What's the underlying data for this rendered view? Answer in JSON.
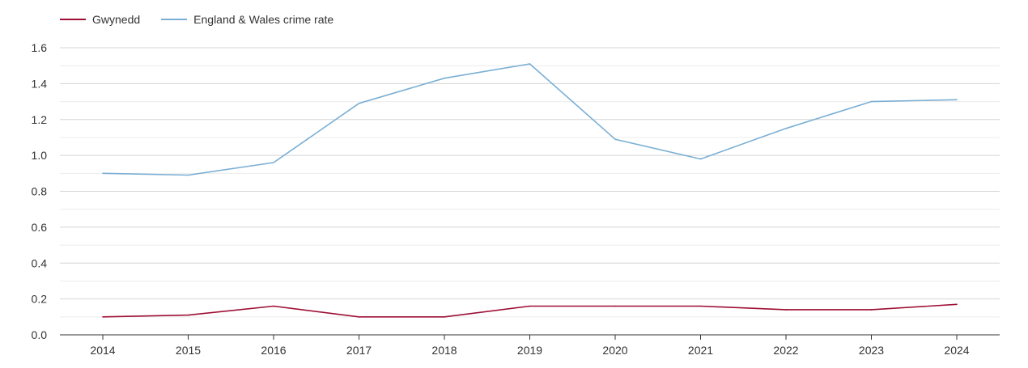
{
  "chart_data": {
    "type": "line",
    "categories": [
      "2014",
      "2015",
      "2016",
      "2017",
      "2018",
      "2019",
      "2020",
      "2021",
      "2022",
      "2023",
      "2024"
    ],
    "series": [
      {
        "name": "Gwynedd",
        "color": "#9e0f34",
        "values": [
          0.1,
          0.11,
          0.16,
          0.1,
          0.1,
          0.16,
          0.16,
          0.16,
          0.14,
          0.14,
          0.17
        ]
      },
      {
        "name": "England & Wales crime rate",
        "color": "#7aafd4",
        "values": [
          0.9,
          0.89,
          0.96,
          1.29,
          1.43,
          1.51,
          1.09,
          0.98,
          1.15,
          1.3,
          1.31
        ]
      }
    ],
    "ylim": [
      0,
      1.6
    ],
    "yticks": [
      "0.0",
      "0.2",
      "0.4",
      "0.6",
      "0.8",
      "1.0",
      "1.2",
      "1.4",
      "1.6"
    ],
    "grid": true,
    "legend_position": "top-left"
  }
}
